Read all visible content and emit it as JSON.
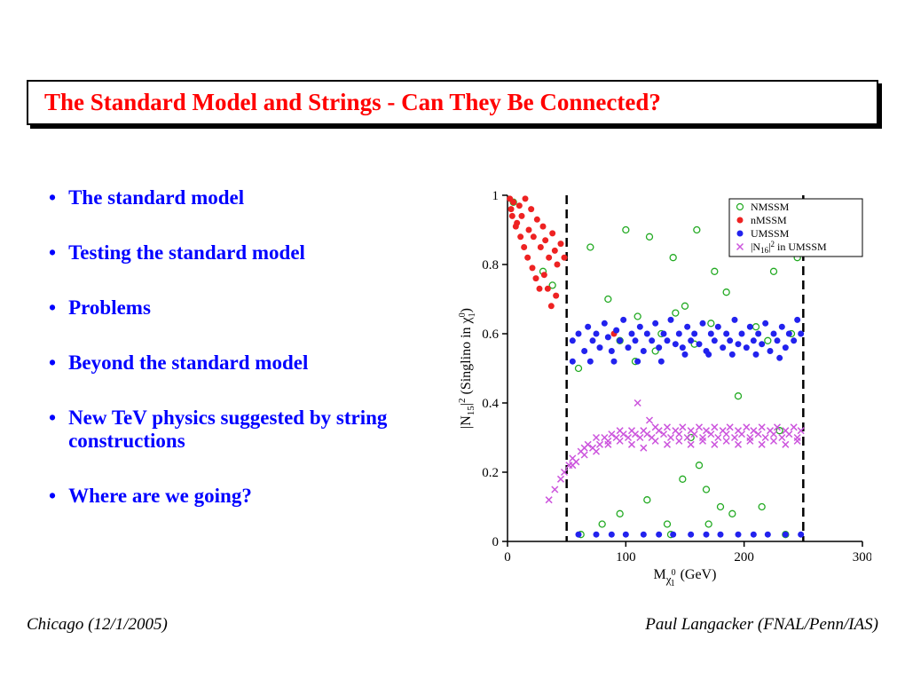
{
  "title": "The Standard Model and Strings - Can They Be Connected?",
  "bullets": [
    "The standard model",
    "Testing the standard model",
    "Problems",
    "Beyond the standard model",
    "New TeV physics suggested by string constructions",
    "Where are we going?"
  ],
  "footer": {
    "left": "Chicago (12/1/2005)",
    "right": "Paul Langacker (FNAL/Penn/IAS)"
  },
  "chart": {
    "type": "scatter",
    "xlabel_part1": "M",
    "xlabel_sub": "χ",
    "xlabel_supsub": "0",
    "xlabel_subsub": "1",
    "xlabel_part2": " (GeV)",
    "ylabel_part1": "|N",
    "ylabel_sub1": "15",
    "ylabel_part2": "|",
    "ylabel_sup": "2",
    "ylabel_part3": "  (Singlino in χ",
    "ylabel_sup2": "0",
    "ylabel_sub2": "1",
    "ylabel_part4": ")",
    "xlim": [
      0,
      300
    ],
    "ylim": [
      0,
      1
    ],
    "xticks": [
      0,
      100,
      200,
      300
    ],
    "yticks": [
      0,
      0.2,
      0.4,
      0.6,
      0.8,
      1
    ],
    "vlines": [
      50,
      250
    ],
    "vline_style": "dashed",
    "vline_color": "#000000",
    "background_color": "#ffffff",
    "axis_color": "#000000",
    "legend": [
      {
        "label": "NMSSM",
        "marker": "open-circle",
        "color": "#22aa22"
      },
      {
        "label": "nMSSM",
        "marker": "filled-circle",
        "color": "#ee2222"
      },
      {
        "label": "UMSSM",
        "marker": "filled-circle",
        "color": "#2222ee"
      },
      {
        "label_part1": "|N",
        "label_sub": "16",
        "label_part2": "|",
        "label_sup": "2",
        "label_part3": " in UMSSM",
        "marker": "cross",
        "color": "#cc55dd"
      }
    ],
    "legend_fontsize": 12,
    "label_fontsize": 16,
    "tick_fontsize": 15,
    "marker_size": 3.5,
    "series": {
      "nmssm": {
        "color": "#22aa22",
        "points": [
          [
            5,
            0.98
          ],
          [
            30,
            0.78
          ],
          [
            38,
            0.74
          ],
          [
            60,
            0.5
          ],
          [
            70,
            0.85
          ],
          [
            85,
            0.7
          ],
          [
            100,
            0.9
          ],
          [
            110,
            0.65
          ],
          [
            120,
            0.88
          ],
          [
            125,
            0.55
          ],
          [
            138,
            0.02
          ],
          [
            140,
            0.82
          ],
          [
            150,
            0.68
          ],
          [
            155,
            0.3
          ],
          [
            160,
            0.9
          ],
          [
            168,
            0.15
          ],
          [
            170,
            0.05
          ],
          [
            175,
            0.78
          ],
          [
            180,
            0.1
          ],
          [
            185,
            0.72
          ],
          [
            195,
            0.42
          ],
          [
            200,
            0.85
          ],
          [
            210,
            0.62
          ],
          [
            215,
            0.1
          ],
          [
            220,
            0.58
          ],
          [
            225,
            0.78
          ],
          [
            230,
            0.32
          ],
          [
            235,
            0.02
          ],
          [
            240,
            0.6
          ],
          [
            245,
            0.82
          ],
          [
            62,
            0.02
          ],
          [
            80,
            0.05
          ],
          [
            95,
            0.08
          ],
          [
            118,
            0.12
          ],
          [
            135,
            0.05
          ],
          [
            148,
            0.18
          ],
          [
            162,
            0.22
          ],
          [
            190,
            0.08
          ],
          [
            95,
            0.58
          ],
          [
            108,
            0.52
          ],
          [
            130,
            0.6
          ],
          [
            142,
            0.66
          ],
          [
            158,
            0.57
          ],
          [
            172,
            0.63
          ]
        ]
      },
      "nmssm_red": {
        "color": "#ee2222",
        "points": [
          [
            2,
            0.99
          ],
          [
            3,
            0.96
          ],
          [
            5,
            0.98
          ],
          [
            8,
            0.92
          ],
          [
            10,
            0.97
          ],
          [
            12,
            0.94
          ],
          [
            15,
            0.99
          ],
          [
            18,
            0.9
          ],
          [
            20,
            0.96
          ],
          [
            22,
            0.88
          ],
          [
            25,
            0.93
          ],
          [
            28,
            0.85
          ],
          [
            30,
            0.91
          ],
          [
            32,
            0.87
          ],
          [
            35,
            0.82
          ],
          [
            38,
            0.89
          ],
          [
            40,
            0.84
          ],
          [
            42,
            0.8
          ],
          [
            45,
            0.86
          ],
          [
            48,
            0.82
          ],
          [
            4,
            0.94
          ],
          [
            7,
            0.91
          ],
          [
            11,
            0.88
          ],
          [
            14,
            0.85
          ],
          [
            17,
            0.82
          ],
          [
            21,
            0.79
          ],
          [
            24,
            0.76
          ],
          [
            27,
            0.73
          ],
          [
            31,
            0.77
          ],
          [
            34,
            0.73
          ],
          [
            37,
            0.68
          ],
          [
            41,
            0.71
          ],
          [
            90,
            0.6
          ]
        ]
      },
      "umssm": {
        "color": "#2222ee",
        "points": [
          [
            55,
            0.58
          ],
          [
            60,
            0.6
          ],
          [
            65,
            0.55
          ],
          [
            68,
            0.62
          ],
          [
            72,
            0.58
          ],
          [
            75,
            0.6
          ],
          [
            78,
            0.56
          ],
          [
            82,
            0.63
          ],
          [
            85,
            0.59
          ],
          [
            88,
            0.55
          ],
          [
            92,
            0.61
          ],
          [
            95,
            0.58
          ],
          [
            98,
            0.64
          ],
          [
            102,
            0.56
          ],
          [
            105,
            0.6
          ],
          [
            108,
            0.58
          ],
          [
            112,
            0.62
          ],
          [
            115,
            0.55
          ],
          [
            118,
            0.6
          ],
          [
            122,
            0.58
          ],
          [
            125,
            0.63
          ],
          [
            128,
            0.56
          ],
          [
            132,
            0.6
          ],
          [
            135,
            0.58
          ],
          [
            138,
            0.64
          ],
          [
            142,
            0.57
          ],
          [
            145,
            0.6
          ],
          [
            148,
            0.56
          ],
          [
            152,
            0.62
          ],
          [
            155,
            0.58
          ],
          [
            158,
            0.6
          ],
          [
            162,
            0.57
          ],
          [
            165,
            0.63
          ],
          [
            168,
            0.55
          ],
          [
            172,
            0.6
          ],
          [
            175,
            0.58
          ],
          [
            178,
            0.62
          ],
          [
            182,
            0.56
          ],
          [
            185,
            0.6
          ],
          [
            188,
            0.58
          ],
          [
            192,
            0.64
          ],
          [
            195,
            0.57
          ],
          [
            198,
            0.6
          ],
          [
            202,
            0.56
          ],
          [
            205,
            0.62
          ],
          [
            208,
            0.58
          ],
          [
            212,
            0.6
          ],
          [
            215,
            0.57
          ],
          [
            218,
            0.63
          ],
          [
            222,
            0.55
          ],
          [
            225,
            0.6
          ],
          [
            228,
            0.58
          ],
          [
            232,
            0.62
          ],
          [
            235,
            0.56
          ],
          [
            238,
            0.6
          ],
          [
            242,
            0.58
          ],
          [
            245,
            0.64
          ],
          [
            60,
            0.02
          ],
          [
            75,
            0.02
          ],
          [
            88,
            0.02
          ],
          [
            100,
            0.02
          ],
          [
            115,
            0.02
          ],
          [
            128,
            0.02
          ],
          [
            140,
            0.02
          ],
          [
            155,
            0.02
          ],
          [
            168,
            0.02
          ],
          [
            180,
            0.02
          ],
          [
            195,
            0.02
          ],
          [
            208,
            0.02
          ],
          [
            220,
            0.02
          ],
          [
            235,
            0.02
          ],
          [
            248,
            0.02
          ],
          [
            55,
            0.52
          ],
          [
            70,
            0.52
          ],
          [
            90,
            0.52
          ],
          [
            110,
            0.52
          ],
          [
            130,
            0.52
          ],
          [
            150,
            0.54
          ],
          [
            170,
            0.54
          ],
          [
            190,
            0.54
          ],
          [
            210,
            0.54
          ],
          [
            230,
            0.53
          ],
          [
            248,
            0.6
          ]
        ]
      },
      "n16": {
        "color": "#cc55dd",
        "points": [
          [
            35,
            0.12
          ],
          [
            40,
            0.15
          ],
          [
            45,
            0.18
          ],
          [
            48,
            0.2
          ],
          [
            52,
            0.22
          ],
          [
            55,
            0.24
          ],
          [
            58,
            0.23
          ],
          [
            62,
            0.26
          ],
          [
            65,
            0.25
          ],
          [
            68,
            0.28
          ],
          [
            72,
            0.27
          ],
          [
            75,
            0.3
          ],
          [
            78,
            0.28
          ],
          [
            82,
            0.3
          ],
          [
            85,
            0.29
          ],
          [
            88,
            0.31
          ],
          [
            92,
            0.3
          ],
          [
            95,
            0.32
          ],
          [
            98,
            0.31
          ],
          [
            102,
            0.3
          ],
          [
            105,
            0.32
          ],
          [
            108,
            0.31
          ],
          [
            112,
            0.3
          ],
          [
            115,
            0.32
          ],
          [
            118,
            0.31
          ],
          [
            122,
            0.3
          ],
          [
            125,
            0.33
          ],
          [
            128,
            0.32
          ],
          [
            132,
            0.31
          ],
          [
            135,
            0.33
          ],
          [
            138,
            0.3
          ],
          [
            142,
            0.32
          ],
          [
            145,
            0.31
          ],
          [
            148,
            0.33
          ],
          [
            152,
            0.3
          ],
          [
            155,
            0.32
          ],
          [
            158,
            0.31
          ],
          [
            162,
            0.33
          ],
          [
            165,
            0.3
          ],
          [
            168,
            0.32
          ],
          [
            172,
            0.31
          ],
          [
            175,
            0.33
          ],
          [
            178,
            0.3
          ],
          [
            182,
            0.32
          ],
          [
            185,
            0.31
          ],
          [
            188,
            0.33
          ],
          [
            192,
            0.3
          ],
          [
            195,
            0.32
          ],
          [
            198,
            0.31
          ],
          [
            202,
            0.33
          ],
          [
            205,
            0.3
          ],
          [
            208,
            0.32
          ],
          [
            212,
            0.31
          ],
          [
            215,
            0.33
          ],
          [
            218,
            0.3
          ],
          [
            222,
            0.32
          ],
          [
            225,
            0.31
          ],
          [
            228,
            0.33
          ],
          [
            232,
            0.3
          ],
          [
            235,
            0.32
          ],
          [
            238,
            0.31
          ],
          [
            242,
            0.33
          ],
          [
            245,
            0.3
          ],
          [
            248,
            0.32
          ],
          [
            55,
            0.22
          ],
          [
            65,
            0.27
          ],
          [
            75,
            0.26
          ],
          [
            85,
            0.28
          ],
          [
            95,
            0.29
          ],
          [
            105,
            0.28
          ],
          [
            115,
            0.27
          ],
          [
            125,
            0.29
          ],
          [
            135,
            0.28
          ],
          [
            145,
            0.29
          ],
          [
            155,
            0.28
          ],
          [
            165,
            0.29
          ],
          [
            175,
            0.28
          ],
          [
            185,
            0.29
          ],
          [
            195,
            0.28
          ],
          [
            205,
            0.29
          ],
          [
            215,
            0.28
          ],
          [
            225,
            0.29
          ],
          [
            235,
            0.28
          ],
          [
            245,
            0.29
          ],
          [
            110,
            0.4
          ],
          [
            120,
            0.35
          ]
        ]
      }
    }
  }
}
